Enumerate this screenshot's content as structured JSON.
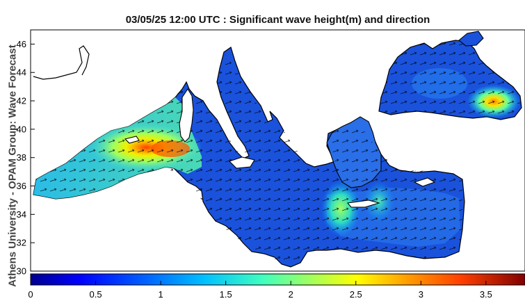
{
  "title": "03/05/25 12:00 UTC : Significant wave height(m) and direction",
  "side_label": "Athens University - OPAM Group: Wave Forecast",
  "y_axis": {
    "ticks": [
      "30",
      "32",
      "34",
      "36",
      "38",
      "40",
      "42",
      "44",
      "46"
    ],
    "range": [
      30,
      47
    ]
  },
  "colorbar": {
    "ticks": [
      "0",
      "0.5",
      "1",
      "1.5",
      "2",
      "2.5",
      "3",
      "3.5"
    ],
    "range": [
      0,
      3.8
    ],
    "colors": [
      "#00008f",
      "#0000ff",
      "#0060ff",
      "#00bfff",
      "#40ffbf",
      "#9fff60",
      "#ffff00",
      "#ff9f00",
      "#ff4000",
      "#bf0000",
      "#800000"
    ]
  },
  "colors": {
    "sea_deep": "#1446d8",
    "sea_mid": "#2c7cf2",
    "land": "#ffffff",
    "coast": "#000000"
  }
}
